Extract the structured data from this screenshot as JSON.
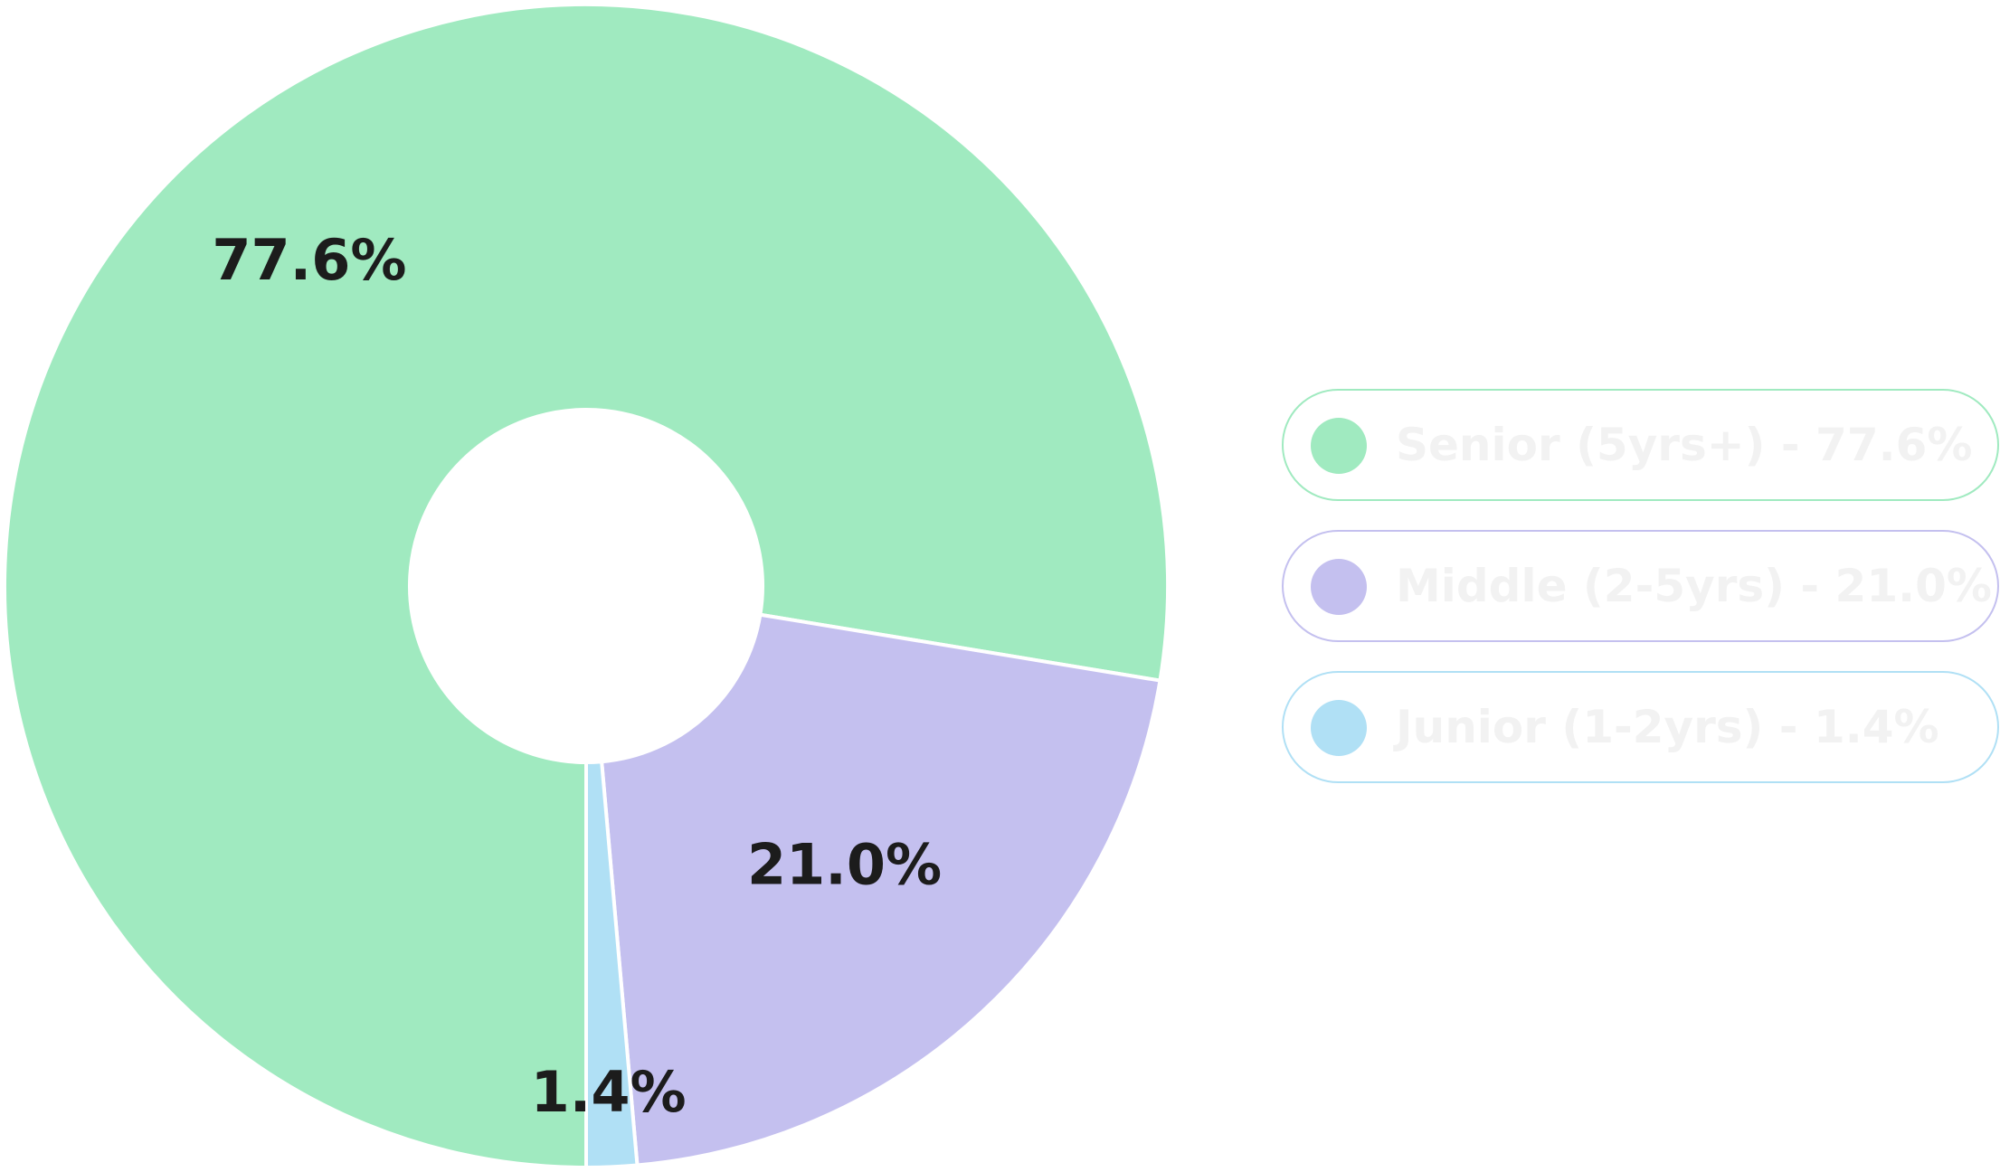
{
  "chart_data": {
    "type": "pie",
    "variant": "donut",
    "slices": [
      {
        "label": "Senior (5yrs+)",
        "value": 77.6,
        "display": "77.6%",
        "color": "#a0eac0"
      },
      {
        "label": "Middle (2-5yrs)",
        "value": 21.0,
        "display": "21.0%",
        "color": "#c4c0ef"
      },
      {
        "label": "Junior (1-2yrs)",
        "value": 1.4,
        "display": "1.4%",
        "color": "#b0e0f5"
      }
    ],
    "legend_placement": "right",
    "legend_text_color": "#f2f2f2"
  },
  "legend": {
    "items": [
      {
        "text": "Senior (5yrs+) - 77.6%",
        "color": "#a0eac0"
      },
      {
        "text": "Middle (2-5yrs) - 21.0%",
        "color": "#c4c0ef"
      },
      {
        "text": "Junior (1-2yrs) - 1.4%",
        "color": "#b0e0f5"
      }
    ]
  }
}
